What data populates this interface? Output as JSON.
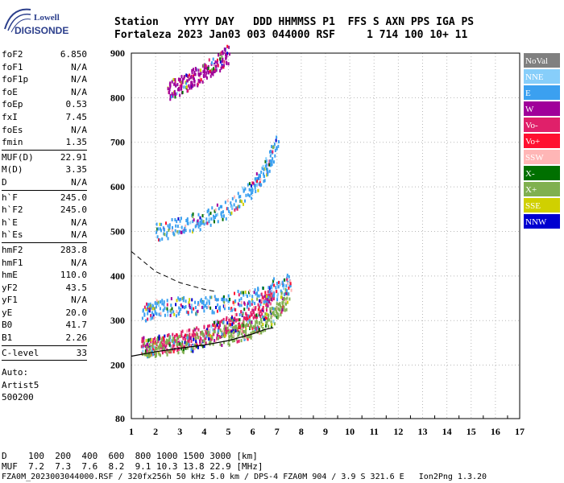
{
  "logo": {
    "line1": "Lowell",
    "line2": "DIGISONDE"
  },
  "header": {
    "row1": "Station    YYYY DAY   DDD HHMMSS P1  FFS S AXN PPS IGA PS",
    "row2": "Fortaleza 2023 Jan03 003 044000 RSF     1 714 100 10+ 11"
  },
  "params_group1": [
    {
      "name": "foF2",
      "value": "6.850"
    },
    {
      "name": "foF1",
      "value": "N/A"
    },
    {
      "name": "foF1p",
      "value": "N/A"
    },
    {
      "name": "foE",
      "value": "N/A"
    },
    {
      "name": "foEp",
      "value": "0.53"
    },
    {
      "name": "fxI",
      "value": "7.45"
    },
    {
      "name": "foEs",
      "value": "N/A"
    },
    {
      "name": "fmin",
      "value": "1.35"
    }
  ],
  "params_group2": [
    {
      "name": "MUF(D)",
      "value": "22.91"
    },
    {
      "name": "M(D)",
      "value": "3.35"
    },
    {
      "name": "D",
      "value": "N/A"
    }
  ],
  "params_group3": [
    {
      "name": "h`F",
      "value": "245.0"
    },
    {
      "name": "h`F2",
      "value": "245.0"
    },
    {
      "name": "h`E",
      "value": "N/A"
    },
    {
      "name": "h`Es",
      "value": "N/A"
    }
  ],
  "params_group4": [
    {
      "name": "hmF2",
      "value": "283.8"
    },
    {
      "name": "hmF1",
      "value": "N/A"
    },
    {
      "name": "hmE",
      "value": "110.0"
    },
    {
      "name": "yF2",
      "value": "43.5"
    },
    {
      "name": "yF1",
      "value": "N/A"
    },
    {
      "name": "yE",
      "value": "20.0"
    },
    {
      "name": "B0",
      "value": "41.7"
    },
    {
      "name": "B1",
      "value": "2.26"
    }
  ],
  "clevel": {
    "name": "C-level",
    "value": "33"
  },
  "auto_text": [
    "Auto:",
    "Artist5",
    "500200"
  ],
  "bottom": {
    "d_line": "D    100  200  400  600  800 1000 1500 3000 [km]",
    "muf_line": "MUF  7.2  7.3  7.6  8.2  9.1 10.3 13.8 22.9 [MHz]",
    "info_line": "FZA0M_2023003044000.RSF / 320fx256h 50 kHz 5.0 km / DPS-4 FZA0M 904 / 3.9 S 321.6 E   Ion2Png 1.3.20"
  },
  "legend": [
    {
      "label": "NoVal",
      "color": "#808080"
    },
    {
      "label": "NNE",
      "color": "#87cefa"
    },
    {
      "label": "E",
      "color": "#3ba0f0"
    },
    {
      "label": "W",
      "color": "#a0009a"
    },
    {
      "label": "Vo-",
      "color": "#e0206a"
    },
    {
      "label": "Vo+",
      "color": "#ff1030"
    },
    {
      "label": "SSW",
      "color": "#ffb6b6"
    },
    {
      "label": "X-",
      "color": "#007000"
    },
    {
      "label": "X+",
      "color": "#80b050"
    },
    {
      "label": "SSE",
      "color": "#d0d000"
    },
    {
      "label": "NNW",
      "color": "#0000d0"
    }
  ],
  "chart_data": {
    "type": "scatter",
    "xlim": [
      1,
      17
    ],
    "ylim": [
      80,
      900
    ],
    "x_ticks": [
      "1",
      "2",
      "3",
      "4",
      "5",
      "6",
      "7",
      "8",
      "9",
      "10",
      "11",
      "12",
      "13",
      "14",
      "15",
      "16",
      "17"
    ],
    "y_ticks": [
      "80",
      "200",
      "300",
      "400",
      "500",
      "600",
      "700",
      "800",
      "900"
    ],
    "y_tick_values": [
      80,
      200,
      300,
      400,
      500,
      600,
      700,
      800,
      900
    ],
    "grid": true,
    "traces": [
      {
        "name": "o-trace",
        "color": "#e0206a",
        "x": [
          1.4,
          2.0,
          2.5,
          3.0,
          3.5,
          4.0,
          4.5,
          5.0,
          5.5,
          6.0,
          6.5,
          6.85
        ],
        "y": [
          245,
          248,
          252,
          258,
          265,
          272,
          282,
          293,
          306,
          322,
          345,
          380
        ]
      },
      {
        "name": "x-trace",
        "color": "#80b050",
        "x": [
          1.5,
          2.0,
          3.0,
          4.0,
          5.0,
          5.5,
          6.0,
          6.5,
          7.0,
          7.45
        ],
        "y": [
          240,
          243,
          250,
          258,
          268,
          275,
          285,
          300,
          325,
          360
        ]
      },
      {
        "name": "diffuse",
        "color": "#3ba0f0",
        "x": [
          1.5,
          2.0,
          3.0,
          4.0,
          5.0,
          6.0,
          7.0,
          7.6
        ],
        "y": [
          320,
          330,
          335,
          338,
          345,
          355,
          370,
          390
        ]
      },
      {
        "name": "2nd-hop",
        "color": "#3ba0f0",
        "x": [
          2.0,
          3.0,
          4.0,
          5.0,
          6.0,
          6.5,
          7.0
        ],
        "y": [
          500,
          515,
          530,
          555,
          600,
          640,
          700
        ]
      },
      {
        "name": "3rd-hop",
        "color": "#a0009a",
        "x": [
          2.5,
          3.0,
          3.5,
          4.0,
          4.5,
          5.0
        ],
        "y": [
          820,
          830,
          845,
          860,
          880,
          900
        ]
      }
    ],
    "profile_curve": {
      "x": [
        1.0,
        2.0,
        3.0,
        4.0,
        5.0,
        6.0,
        6.5,
        6.85
      ],
      "y": [
        220,
        230,
        238,
        245,
        255,
        270,
        280,
        283.8
      ]
    },
    "dashed_curve": {
      "x": [
        1.0,
        2.0,
        3.0,
        4.0,
        4.5
      ],
      "y": [
        455,
        410,
        385,
        370,
        365
      ]
    }
  }
}
